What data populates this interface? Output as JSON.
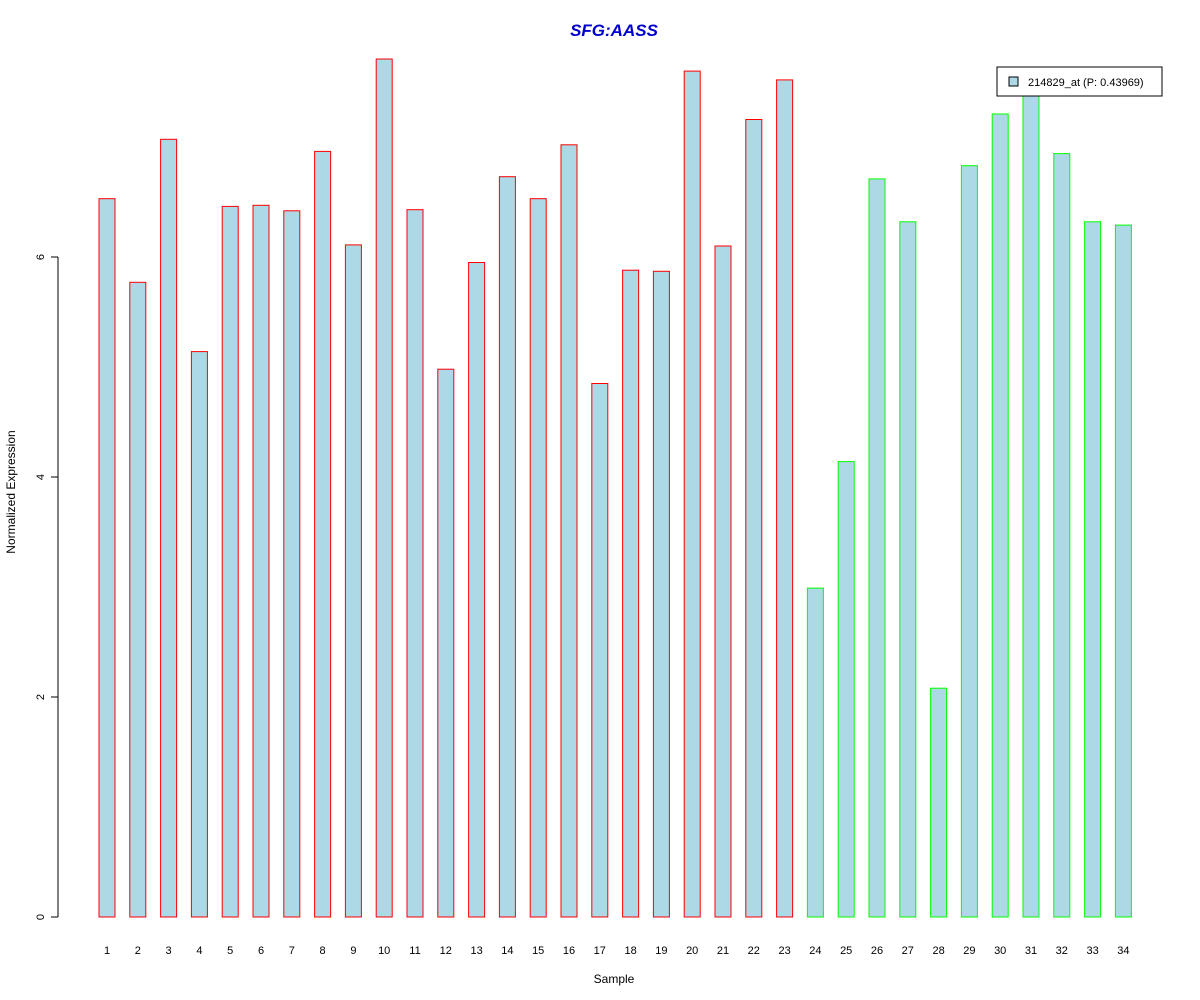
{
  "chart_data": {
    "type": "bar",
    "title": "SFG:AASS",
    "xlabel": "Sample",
    "ylabel": "Normalized Expression",
    "ylim": [
      0,
      7.8
    ],
    "yticks": [
      0,
      2,
      4,
      6
    ],
    "categories": [
      "1",
      "2",
      "3",
      "4",
      "5",
      "6",
      "7",
      "8",
      "9",
      "10",
      "11",
      "12",
      "13",
      "14",
      "15",
      "16",
      "17",
      "18",
      "19",
      "20",
      "21",
      "22",
      "23",
      "24",
      "25",
      "26",
      "27",
      "28",
      "29",
      "30",
      "31",
      "32",
      "33",
      "34"
    ],
    "series": [
      {
        "name": "214829_at (P: 0.43969)",
        "values": [
          6.53,
          5.77,
          7.07,
          5.14,
          6.46,
          6.47,
          6.42,
          6.96,
          6.11,
          7.8,
          6.43,
          4.98,
          5.95,
          6.73,
          6.53,
          7.02,
          4.85,
          5.88,
          5.87,
          7.69,
          6.1,
          7.25,
          7.61,
          2.99,
          4.14,
          6.71,
          6.32,
          2.08,
          6.83,
          7.3,
          7.49,
          6.94,
          6.32,
          6.29
        ]
      }
    ],
    "group_sizes": [
      23,
      11
    ],
    "colors": {
      "fill": "#ADD8E6",
      "border_group1": "#FF0000",
      "border_group2": "#00FF00",
      "title": "#0000CD"
    },
    "legend": {
      "position": "top-right"
    },
    "grid": false
  }
}
